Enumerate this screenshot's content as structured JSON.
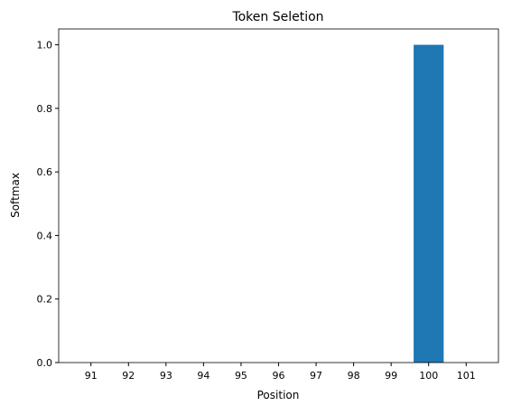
{
  "chart_data": {
    "type": "bar",
    "title": "Token Seletion",
    "x_label": "Position",
    "y_label": "Softmax",
    "categories": [
      "91",
      "92",
      "93",
      "94",
      "95",
      "96",
      "97",
      "98",
      "99",
      "100",
      "101"
    ],
    "values": [
      0,
      0,
      0,
      0,
      0,
      0,
      0,
      0,
      0,
      1.0,
      0
    ],
    "color": "#1f77b4",
    "ylim": [
      0,
      1.05
    ],
    "yticks": [
      {
        "value": 0,
        "label": "0.0"
      },
      0.2,
      0.4,
      0.6,
      0.8,
      {
        "value": 1,
        "label": "1.0"
      }
    ],
    "grid": false
  }
}
